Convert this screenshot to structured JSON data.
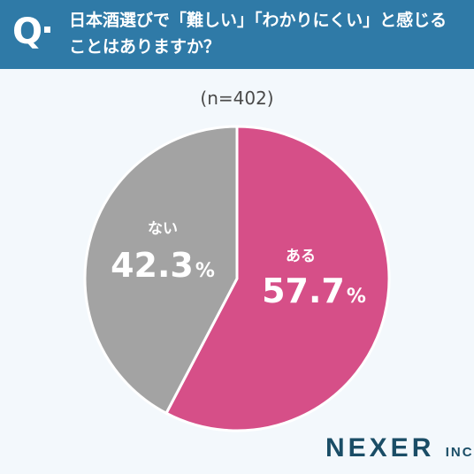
{
  "header": {
    "q_mark": "Q",
    "line1": "日本酒選びで「難しい」「わかりにくい」と感じる",
    "line2": "ことはありますか？"
  },
  "sample_size": "(n=402)",
  "chart_data": {
    "type": "pie",
    "title": "日本酒選びで「難しい」「わかりにくい」と感じることはありますか？",
    "subtitle": "(n=402)",
    "slices": [
      {
        "label": "ある",
        "value": 57.7,
        "display": "57.7",
        "unit": "%",
        "color": "#d64f88"
      },
      {
        "label": "ない",
        "value": 42.3,
        "display": "42.3",
        "unit": "%",
        "color": "#a3a3a3"
      }
    ],
    "start": "12 o'clock",
    "direction": "clockwise",
    "legend": "none"
  },
  "brand": {
    "name": "NEXER",
    "suffix": "INC."
  },
  "colors": {
    "header_bg": "#2f7aa7",
    "page_bg": "#f3f8fc",
    "brand_text": "#1a4d66"
  }
}
